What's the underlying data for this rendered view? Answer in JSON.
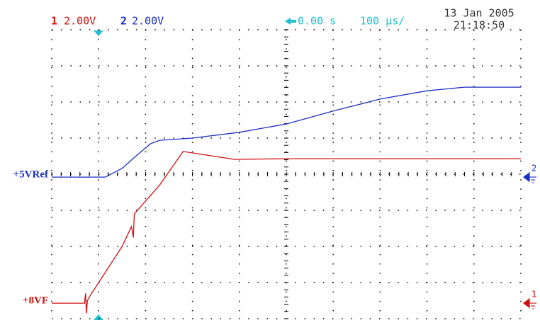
{
  "header": {
    "ch1_number": "1",
    "ch1_scale": "2.00V",
    "ch2_number": "2",
    "ch2_scale": "2.00V",
    "trigger_delay": "0.00 s",
    "timebase": "100 µs/",
    "date": "13 Jan 2005",
    "time": "21:18:50"
  },
  "chart_data": {
    "type": "line",
    "grid": true,
    "xlim": [
      0,
      10
    ],
    "ylim": [
      -4,
      4
    ],
    "series": [
      {
        "name": "+5VRef",
        "channel": "2",
        "color": "#1a2fc4",
        "x": [
          0,
          1.14,
          1.5,
          1.8,
          2.1,
          2.3,
          3,
          4,
          5,
          6,
          7,
          8,
          8.8,
          10
        ],
        "values": [
          -0.08,
          -0.08,
          0.16,
          0.51,
          0.84,
          0.94,
          1.0,
          1.16,
          1.39,
          1.75,
          2.08,
          2.31,
          2.41,
          2.41
        ]
      },
      {
        "name": "+8VF",
        "channel": "1",
        "color": "#d01010",
        "x": [
          0,
          0.7,
          0.72,
          0.74,
          0.76,
          0.8,
          1.5,
          1.7,
          1.74,
          1.76,
          2.3,
          2.8,
          3.2,
          3.9,
          5,
          10
        ],
        "values": [
          -3.57,
          -3.57,
          -3.3,
          -3.85,
          -3.5,
          -3.4,
          -2.0,
          -1.45,
          -1.75,
          -1.1,
          -0.3,
          0.63,
          0.55,
          0.41,
          0.43,
          0.43
        ]
      }
    ]
  }
}
